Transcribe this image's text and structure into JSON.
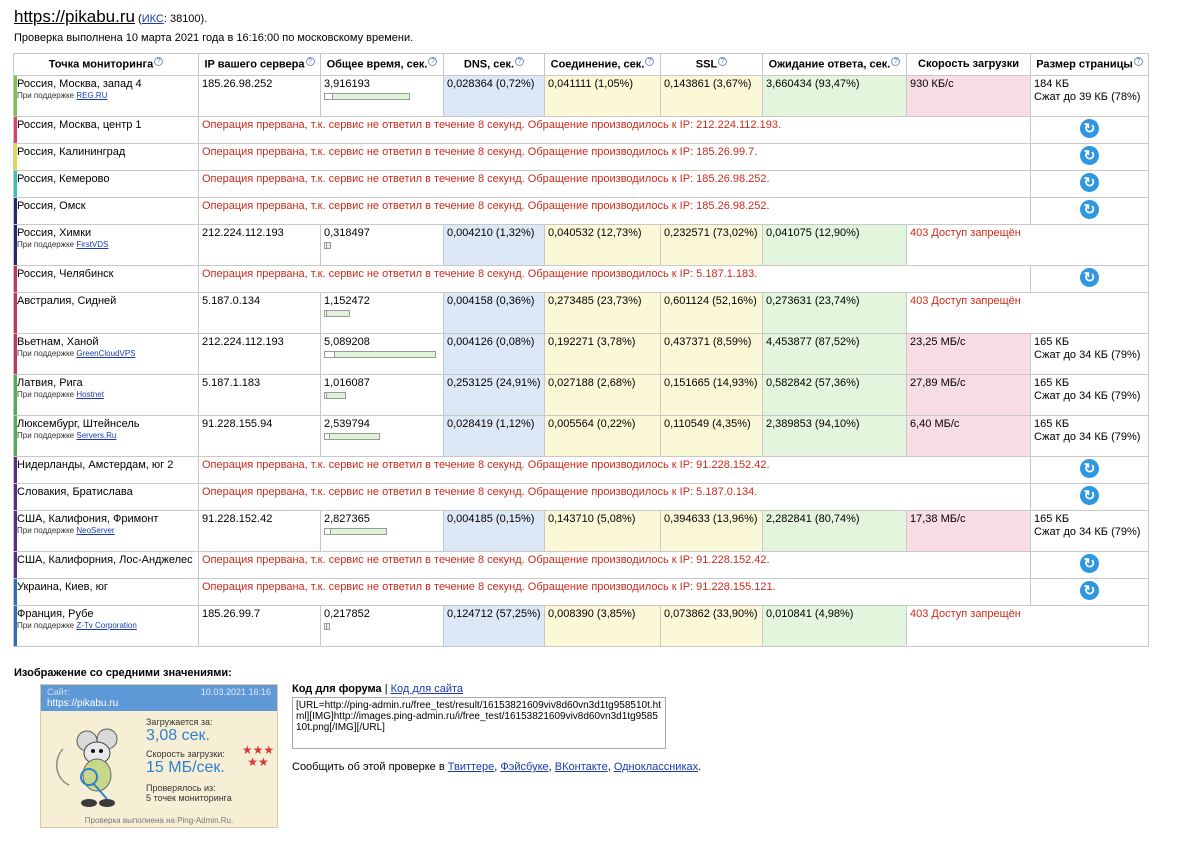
{
  "header": {
    "site": "https://pikabu.ru",
    "iks_prefix": "(",
    "iks_label": "ИКС",
    "iks_value": ": 38100).",
    "checked": "Проверка выполнена 10 марта 2021 года в 16:16:00 по московскому времени."
  },
  "table": {
    "columns": [
      "Точка мониторинга",
      "IP вашего сервера",
      "Общее время, сек.",
      "DNS, сек.",
      "Соединение, сек.",
      "SSL",
      "Ожидание ответа, сек.",
      "Скорость загрузки",
      "Размер страницы"
    ],
    "support_prefix": "При поддержке",
    "rows": [
      {
        "loc": "Россия, Москва, запад 4",
        "sponsor": "REG.RU",
        "ip": "185.26.98.252",
        "total": "3,916193",
        "total_frac": 0.77,
        "dns": "0,028364 (0,72%)",
        "conn": "0,041111 (1,05%)",
        "ssl": "0,143861 (3,67%)",
        "wait": "3,660434 (93,47%)",
        "speed": "930 КБ/с",
        "size": "184 КБ",
        "size2": "Сжат до 39 КБ (78%)",
        "color": "#7cc24a"
      },
      {
        "loc": "Россия, Москва, центр 1",
        "err": "Операция прервана, т.к. сервис не ответил в течение 8 секунд. Обращение производилось к IP: 212.224.112.193.",
        "color": "#d9435f"
      },
      {
        "loc": "Россия, Калининград",
        "err": "Операция прервана, т.к. сервис не ответил в течение 8 секунд. Обращение производилось к IP: 185.26.99.7.",
        "color": "#e2d94a"
      },
      {
        "loc": "Россия, Кемерово",
        "err": "Операция прервана, т.к. сервис не ответил в течение 8 секунд. Обращение производилось к IP: 185.26.98.252.",
        "color": "#39c3b3"
      },
      {
        "loc": "Россия, Омск",
        "err": "Операция прервана, т.к. сервис не ответил в течение 8 секунд. Обращение производилось к IP: 185.26.98.252.",
        "color": "#1f2a6b"
      },
      {
        "loc": "Россия, Химки",
        "sponsor": "FirstVDS",
        "ip": "212.224.112.193",
        "total": "0,318497",
        "total_frac": 0.06,
        "dns": "0,004210 (1,32%)",
        "conn": "0,040532 (12,73%)",
        "ssl": "0,232571 (73,02%)",
        "wait": "0,041075 (12,90%)",
        "status": "403 Доступ запрещён",
        "color": "#1f2a6b"
      },
      {
        "loc": "Россия, Челябинск",
        "err": "Операция прервана, т.к. сервис не ответил в течение 8 секунд. Обращение производилось к IP: 5.187.1.183.",
        "color": "#c0355a"
      },
      {
        "loc": "Австралия, Сидней",
        "ip": "5.187.0.134",
        "total": "1,152472",
        "total_frac": 0.23,
        "dns": "0,004158 (0,36%)",
        "conn": "0,273485 (23,73%)",
        "ssl": "0,601124 (52,16%)",
        "wait": "0,273631 (23,74%)",
        "status": "403 Доступ запрещён",
        "color": "#c0355a"
      },
      {
        "loc": "Вьетнам, Ханой",
        "sponsor": "GreenCloudVPS",
        "ip": "212.224.112.193",
        "total": "5,089208",
        "total_frac": 1.0,
        "dns": "0,004126 (0,08%)",
        "conn": "0,192271 (3,78%)",
        "ssl": "0,437371 (8,59%)",
        "wait": "4,453877 (87,52%)",
        "speed": "23,25 МБ/с",
        "size": "165 КБ",
        "size2": "Сжат до 34 КБ (79%)",
        "color": "#c0355a"
      },
      {
        "loc": "Латвия, Рига",
        "sponsor": "Hostnet",
        "ip": "5.187.1.183",
        "total": "1,016087",
        "total_frac": 0.2,
        "dns": "0,253125 (24,91%)",
        "conn": "0,027188 (2,68%)",
        "ssl": "0,151665 (14,93%)",
        "wait": "0,582842 (57,36%)",
        "speed": "27,89 МБ/с",
        "size": "165 КБ",
        "size2": "Сжат до 34 КБ (79%)",
        "color": "#4caf50"
      },
      {
        "loc": "Люксембург, Штейнсель",
        "sponsor": "Servers.Ru",
        "ip": "91.228.155.94",
        "total": "2,539794",
        "total_frac": 0.5,
        "dns": "0,028419 (1,12%)",
        "conn": "0,005564 (0,22%)",
        "ssl": "0,110549 (4,35%)",
        "wait": "2,389853 (94,10%)",
        "speed": "6,40 МБ/с",
        "size": "165 КБ",
        "size2": "Сжат до 34 КБ (79%)",
        "color": "#4caf50"
      },
      {
        "loc": "Нидерланды, Амстердам, юг 2",
        "err": "Операция прервана, т.к. сервис не ответил в течение 8 секунд. Обращение производилось к IP: 91.228.152.42.",
        "color": "#5b2a86"
      },
      {
        "loc": "Словакия, Братислава",
        "err": "Операция прервана, т.к. сервис не ответил в течение 8 секунд. Обращение производилось к IP: 5.187.0.134.",
        "color": "#5b2a86"
      },
      {
        "loc": "США, Калифония, Фримонт",
        "sponsor": "NeoServer",
        "ip": "91.228.152.42",
        "total": "2,827365",
        "total_frac": 0.56,
        "dns": "0,004185 (0,15%)",
        "conn": "0,143710 (5,08%)",
        "ssl": "0,394633 (13,96%)",
        "wait": "2,282841 (80,74%)",
        "speed": "17,38 МБ/с",
        "size": "165 КБ",
        "size2": "Сжат до 34 КБ (79%)",
        "color": "#5b2a86"
      },
      {
        "loc": "США, Калифорния, Лос-Анджелес",
        "err": "Операция прервана, т.к. сервис не ответил в течение 8 секунд. Обращение производилось к IP: 91.228.152.42.",
        "color": "#5b2a86"
      },
      {
        "loc": "Украина, Киев, юг",
        "err": "Операция прервана, т.к. сервис не ответил в течение 8 секунд. Обращение производилось к IP: 91.228.155.121.",
        "color": "#2c6db3"
      },
      {
        "loc": "Франция, Рубе",
        "sponsor": "Z-Tv Corporation",
        "ip": "185.26.99.7",
        "total": "0,217852",
        "total_frac": 0.04,
        "dns": "0,124712 (57,25%)",
        "conn": "0,008390 (3,85%)",
        "ssl": "0,073862 (33,90%)",
        "wait": "0,010841 (4,98%)",
        "status": "403 Доступ запрещён",
        "color": "#2c6db3"
      }
    ]
  },
  "average": {
    "title": "Изображение со средними значениями:",
    "site_label": "Сайт:",
    "date": "10.03.2021 16:16",
    "site": "https://pikabu.ru",
    "loads_label": "Загружается за:",
    "loads_value": "3,08 сек.",
    "speed_label": "Скорость загрузки:",
    "speed_value": "15 МБ/сек.",
    "checked_label": "Проверялось из:",
    "checked_value": "5 точек мониторинга",
    "footer": "Проверка выполнена на Ping-Admin.Ru.",
    "stars_rating": 5
  },
  "code": {
    "forum_label": "Код для форума",
    "separator": "|",
    "site_label": "Код для сайта",
    "text": "[URL=http://ping-admin.ru/free_test/result/16153821609viv8d60vn3d1tg958510t.html][IMG]http://images.ping-admin.ru/i/free_test/16153821609viv8d60vn3d1tg958510t.png[/IMG][/URL]"
  },
  "share": {
    "prefix": "Сообщить об этой проверке в",
    "links": [
      "Твиттере",
      "Фэйсбуке",
      "ВКонтакте",
      "Одноклассниках"
    ],
    "sep": ", ",
    "end": "."
  },
  "icons": {
    "help": "?",
    "reload": "↻"
  }
}
